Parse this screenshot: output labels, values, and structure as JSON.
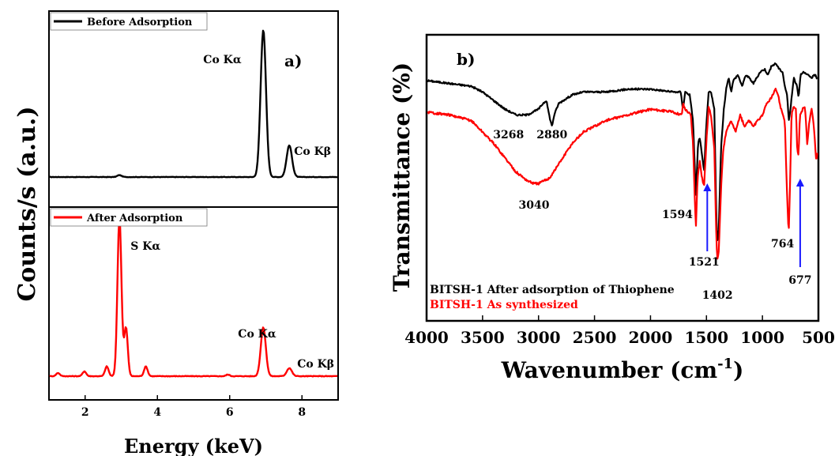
{
  "chart_data": [
    {
      "panel": "a)",
      "type": "line",
      "xlabel": "Energy (keV)",
      "ylabel": "Counts/s (a.u.)",
      "xlim": [
        1,
        9
      ],
      "xticks": [
        2,
        4,
        6,
        8
      ],
      "ylim": [
        0,
        1
      ],
      "grid": false,
      "legend_position": "top-left of each sub-panel",
      "series": [
        {
          "name": "Before Adsorption",
          "color": "#000000",
          "subpanel": "top",
          "baseline": 0.07,
          "noise": 0.003,
          "peaks": [
            {
              "x": 2.95,
              "h": 0.012,
              "w": 0.06
            },
            {
              "x": 6.93,
              "h": 0.93,
              "w": 0.075
            },
            {
              "x": 7.65,
              "h": 0.2,
              "w": 0.075
            }
          ],
          "peak_labels": [
            {
              "text": "Co Kα",
              "x": 6.93
            },
            {
              "text": "Co Kβ",
              "x": 7.65
            }
          ]
        },
        {
          "name": "After Adsorption",
          "color": "#ff0000",
          "subpanel": "bottom",
          "baseline": 0.04,
          "noise": 0.004,
          "peaks": [
            {
              "x": 1.25,
              "h": 0.02,
              "w": 0.05
            },
            {
              "x": 1.98,
              "h": 0.03,
              "w": 0.05
            },
            {
              "x": 2.6,
              "h": 0.06,
              "w": 0.05
            },
            {
              "x": 2.95,
              "h": 0.98,
              "w": 0.055
            },
            {
              "x": 3.13,
              "h": 0.3,
              "w": 0.05
            },
            {
              "x": 3.68,
              "h": 0.06,
              "w": 0.05
            },
            {
              "x": 5.95,
              "h": 0.01,
              "w": 0.05
            },
            {
              "x": 6.93,
              "h": 0.3,
              "w": 0.07
            },
            {
              "x": 7.65,
              "h": 0.05,
              "w": 0.07
            }
          ],
          "peak_labels": [
            {
              "text": "S Kα",
              "x": 2.95
            },
            {
              "text": "Co Kα",
              "x": 6.93
            },
            {
              "text": "Co Kβ",
              "x": 7.65
            }
          ]
        }
      ]
    },
    {
      "panel": "b)",
      "type": "line",
      "xlabel": "Wavenumber (cm",
      "xlabel_sup": "-1",
      "xlabel_close": ")",
      "ylabel": "Transmittance (%)",
      "xlim": [
        4000,
        500
      ],
      "xticks": [
        4000,
        3500,
        3000,
        2500,
        2000,
        1500,
        1000,
        500
      ],
      "ylim": [
        0,
        1
      ],
      "grid": false,
      "legend_position": "bottom-left",
      "series": [
        {
          "name": "BITSH-1 After adsorption of Thiophene",
          "color": "#000000",
          "noise": 0.006,
          "points": [
            [
              4000,
              0.84
            ],
            [
              3800,
              0.83
            ],
            [
              3600,
              0.82
            ],
            [
              3500,
              0.8
            ],
            [
              3400,
              0.77
            ],
            [
              3300,
              0.74
            ],
            [
              3200,
              0.72
            ],
            [
              3100,
              0.72
            ],
            [
              3000,
              0.74
            ],
            [
              2960,
              0.76
            ],
            [
              2930,
              0.77
            ],
            [
              2900,
              0.71
            ],
            [
              2880,
              0.68
            ],
            [
              2860,
              0.72
            ],
            [
              2820,
              0.76
            ],
            [
              2700,
              0.79
            ],
            [
              2600,
              0.8
            ],
            [
              2400,
              0.8
            ],
            [
              2200,
              0.81
            ],
            [
              2000,
              0.81
            ],
            [
              1800,
              0.8
            ],
            [
              1730,
              0.8
            ],
            [
              1710,
              0.74
            ],
            [
              1690,
              0.8
            ],
            [
              1650,
              0.79
            ],
            [
              1620,
              0.7
            ],
            [
              1600,
              0.49
            ],
            [
              1594,
              0.44
            ],
            [
              1575,
              0.62
            ],
            [
              1560,
              0.64
            ],
            [
              1540,
              0.58
            ],
            [
              1521,
              0.52
            ],
            [
              1505,
              0.66
            ],
            [
              1480,
              0.8
            ],
            [
              1460,
              0.8
            ],
            [
              1430,
              0.74
            ],
            [
              1410,
              0.33
            ],
            [
              1402,
              0.28
            ],
            [
              1390,
              0.32
            ],
            [
              1370,
              0.6
            ],
            [
              1345,
              0.74
            ],
            [
              1320,
              0.82
            ],
            [
              1300,
              0.85
            ],
            [
              1280,
              0.8
            ],
            [
              1260,
              0.84
            ],
            [
              1220,
              0.86
            ],
            [
              1180,
              0.82
            ],
            [
              1150,
              0.86
            ],
            [
              1120,
              0.85
            ],
            [
              1080,
              0.83
            ],
            [
              1050,
              0.85
            ],
            [
              1020,
              0.87
            ],
            [
              980,
              0.88
            ],
            [
              950,
              0.86
            ],
            [
              920,
              0.89
            ],
            [
              880,
              0.9
            ],
            [
              850,
              0.88
            ],
            [
              820,
              0.87
            ],
            [
              800,
              0.82
            ],
            [
              780,
              0.79
            ],
            [
              764,
              0.7
            ],
            [
              750,
              0.74
            ],
            [
              720,
              0.85
            ],
            [
              690,
              0.82
            ],
            [
              677,
              0.78
            ],
            [
              660,
              0.86
            ],
            [
              640,
              0.87
            ],
            [
              600,
              0.86
            ],
            [
              560,
              0.85
            ],
            [
              530,
              0.86
            ],
            [
              500,
              0.84
            ]
          ]
        },
        {
          "name": "BITSH-1 As synthesized",
          "color": "#ff0000",
          "noise": 0.008,
          "points": [
            [
              4000,
              0.73
            ],
            [
              3800,
              0.72
            ],
            [
              3600,
              0.7
            ],
            [
              3500,
              0.66
            ],
            [
              3400,
              0.62
            ],
            [
              3300,
              0.57
            ],
            [
              3200,
              0.52
            ],
            [
              3100,
              0.49
            ],
            [
              3040,
              0.48
            ],
            [
              3000,
              0.48
            ],
            [
              2900,
              0.5
            ],
            [
              2800,
              0.56
            ],
            [
              2700,
              0.62
            ],
            [
              2600,
              0.66
            ],
            [
              2500,
              0.68
            ],
            [
              2400,
              0.7
            ],
            [
              2200,
              0.72
            ],
            [
              2000,
              0.74
            ],
            [
              1800,
              0.73
            ],
            [
              1720,
              0.72
            ],
            [
              1710,
              0.76
            ],
            [
              1690,
              0.74
            ],
            [
              1640,
              0.72
            ],
            [
              1620,
              0.62
            ],
            [
              1600,
              0.38
            ],
            [
              1594,
              0.33
            ],
            [
              1580,
              0.5
            ],
            [
              1560,
              0.56
            ],
            [
              1540,
              0.5
            ],
            [
              1521,
              0.47
            ],
            [
              1500,
              0.63
            ],
            [
              1480,
              0.75
            ],
            [
              1460,
              0.72
            ],
            [
              1430,
              0.6
            ],
            [
              1410,
              0.26
            ],
            [
              1402,
              0.22
            ],
            [
              1390,
              0.24
            ],
            [
              1370,
              0.46
            ],
            [
              1350,
              0.6
            ],
            [
              1320,
              0.67
            ],
            [
              1280,
              0.7
            ],
            [
              1240,
              0.66
            ],
            [
              1200,
              0.72
            ],
            [
              1160,
              0.68
            ],
            [
              1120,
              0.7
            ],
            [
              1080,
              0.68
            ],
            [
              1040,
              0.7
            ],
            [
              1000,
              0.72
            ],
            [
              960,
              0.76
            ],
            [
              920,
              0.78
            ],
            [
              880,
              0.81
            ],
            [
              860,
              0.79
            ],
            [
              840,
              0.75
            ],
            [
              800,
              0.7
            ],
            [
              785,
              0.5
            ],
            [
              770,
              0.34
            ],
            [
              764,
              0.32
            ],
            [
              755,
              0.45
            ],
            [
              740,
              0.72
            ],
            [
              720,
              0.75
            ],
            [
              700,
              0.74
            ],
            [
              690,
              0.6
            ],
            [
              677,
              0.58
            ],
            [
              665,
              0.72
            ],
            [
              640,
              0.74
            ],
            [
              620,
              0.75
            ],
            [
              600,
              0.62
            ],
            [
              580,
              0.7
            ],
            [
              560,
              0.74
            ],
            [
              540,
              0.68
            ],
            [
              520,
              0.56
            ],
            [
              505,
              0.6
            ],
            [
              500,
              0.62
            ]
          ]
        }
      ],
      "annotations": [
        {
          "text": "3268",
          "x": 3268,
          "color": "#000000"
        },
        {
          "text": "2880",
          "x": 2880,
          "color": "#000000"
        },
        {
          "text": "3040",
          "x": 3040,
          "color": "#000000"
        },
        {
          "text": "1594",
          "x": 1594,
          "color": "#000000"
        },
        {
          "text": "1521",
          "x": 1521,
          "color": "#000000",
          "arrow": true
        },
        {
          "text": "1402",
          "x": 1402,
          "color": "#000000"
        },
        {
          "text": "764",
          "x": 764,
          "color": "#000000"
        },
        {
          "text": "677",
          "x": 677,
          "color": "#000000",
          "arrow": true
        }
      ],
      "arrow_color": "#1a1aff"
    }
  ]
}
